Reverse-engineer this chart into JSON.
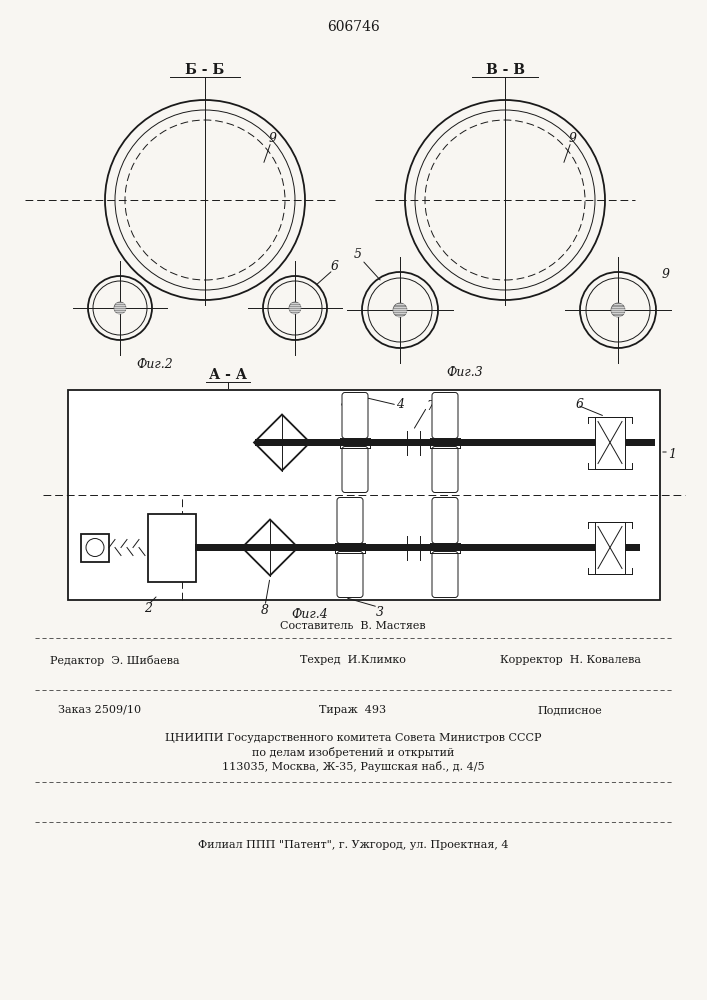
{
  "title": "606746",
  "fig2_label": "Б - Б",
  "fig3_label": "В - В",
  "fig4_label": "А - А",
  "fig2_caption": "Фиг.2",
  "fig3_caption": "Фиг.3",
  "fig4_caption": "Фиг.4",
  "footer_line1": "Составитель  В. Мастяев",
  "footer_editor": "Редактор  Э. Шибаева",
  "footer_tech": "Техред  И.Климко",
  "footer_corrector": "Корректор  Н. Ковалева",
  "footer_order": "Заказ 2509/10",
  "footer_circulation": "Тираж  493",
  "footer_subscription": "Подписное",
  "footer_org": "ЦНИИПИ Государственного комитета Совета Министров СССР",
  "footer_dept": "по делам изобретений и открытий",
  "footer_addr": "113035, Москва, Ж-35, Раушская наб., д. 4/5",
  "footer_branch": "Филиал ППП \"Патент\", г. Ужгород, ул. Проектная, 4",
  "bg_color": "#f8f6f2",
  "line_color": "#1a1a1a",
  "thin_line": 0.7,
  "medium_line": 1.3,
  "thick_line": 2.5
}
